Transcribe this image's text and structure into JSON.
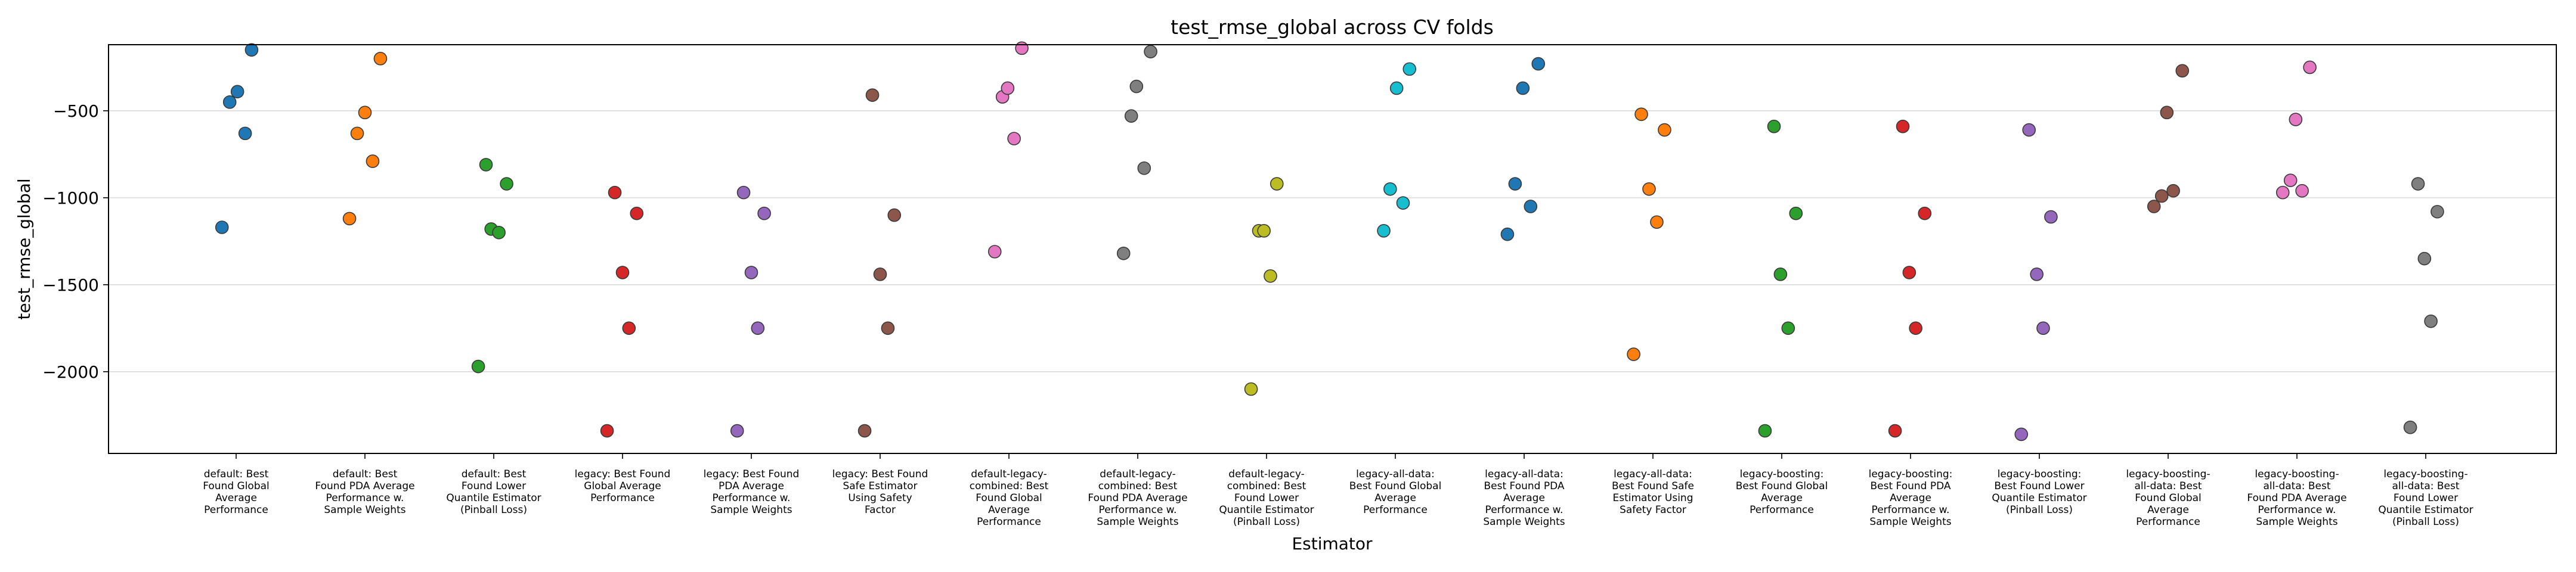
{
  "chart_data": {
    "type": "scatter",
    "title": "test_rmse_global across CV folds",
    "xlabel": "Estimator",
    "ylabel": "test_rmse_global",
    "ylim": [
      -2470,
      -120
    ],
    "yticks": [
      -2000,
      -1500,
      -1000,
      -500
    ],
    "ytick_labels": [
      "−2000",
      "−1500",
      "−1000",
      "−500"
    ],
    "grid": "horizontal",
    "categories": [
      {
        "lines": [
          "default: Best",
          "Found Global",
          "Average",
          "Performance"
        ]
      },
      {
        "lines": [
          "default: Best",
          "Found PDA Average",
          "Performance w.",
          "Sample Weights"
        ]
      },
      {
        "lines": [
          "default: Best",
          "Found Lower",
          "Quantile Estimator",
          "(Pinball Loss)"
        ]
      },
      {
        "lines": [
          "legacy: Best Found",
          "Global Average",
          "Performance"
        ]
      },
      {
        "lines": [
          "legacy: Best Found",
          "PDA Average",
          "Performance w.",
          "Sample Weights"
        ]
      },
      {
        "lines": [
          "legacy: Best Found",
          "Safe Estimator",
          "Using Safety",
          "Factor"
        ]
      },
      {
        "lines": [
          "default-legacy-",
          "combined: Best",
          "Found Global",
          "Average",
          "Performance"
        ]
      },
      {
        "lines": [
          "default-legacy-",
          "combined: Best",
          "Found PDA Average",
          "Performance w.",
          "Sample Weights"
        ]
      },
      {
        "lines": [
          "default-legacy-",
          "combined: Best",
          "Found Lower",
          "Quantile Estimator",
          "(Pinball Loss)"
        ]
      },
      {
        "lines": [
          "legacy-all-data:",
          "Best Found Global",
          "Average",
          "Performance"
        ]
      },
      {
        "lines": [
          "legacy-all-data:",
          "Best Found PDA",
          "Average",
          "Performance w.",
          "Sample Weights"
        ]
      },
      {
        "lines": [
          "legacy-all-data:",
          "Best Found Safe",
          "Estimator Using",
          "Safety Factor"
        ]
      },
      {
        "lines": [
          "legacy-boosting:",
          "Best Found Global",
          "Average",
          "Performance"
        ]
      },
      {
        "lines": [
          "legacy-boosting:",
          "Best Found PDA",
          "Average",
          "Performance w.",
          "Sample Weights"
        ]
      },
      {
        "lines": [
          "legacy-boosting:",
          "Best Found Lower",
          "Quantile Estimator",
          "(Pinball Loss)"
        ]
      },
      {
        "lines": [
          "legacy-boosting-",
          "all-data: Best",
          "Found Global",
          "Average",
          "Performance"
        ]
      },
      {
        "lines": [
          "legacy-boosting-",
          "all-data: Best",
          "Found PDA Average",
          "Performance w.",
          "Sample Weights"
        ]
      },
      {
        "lines": [
          "legacy-boosting-",
          "all-data: Best",
          "Found Lower",
          "Quantile Estimator",
          "(Pinball Loss)"
        ]
      }
    ],
    "series": [
      {
        "color": "#1f77b4",
        "points": [
          {
            "dx": -0.11,
            "y": -1170
          },
          {
            "dx": -0.05,
            "y": -450
          },
          {
            "dx": 0.01,
            "y": -390
          },
          {
            "dx": 0.07,
            "y": -630
          },
          {
            "dx": 0.12,
            "y": -150
          }
        ]
      },
      {
        "color": "#ff7f0e",
        "points": [
          {
            "dx": -0.12,
            "y": -1120
          },
          {
            "dx": -0.06,
            "y": -630
          },
          {
            "dx": 0.0,
            "y": -510
          },
          {
            "dx": 0.06,
            "y": -790
          },
          {
            "dx": 0.12,
            "y": -200
          }
        ]
      },
      {
        "color": "#2ca02c",
        "points": [
          {
            "dx": -0.12,
            "y": -1970
          },
          {
            "dx": -0.06,
            "y": -810
          },
          {
            "dx": -0.02,
            "y": -1180
          },
          {
            "dx": 0.04,
            "y": -1200
          },
          {
            "dx": 0.1,
            "y": -920
          }
        ]
      },
      {
        "color": "#d62728",
        "points": [
          {
            "dx": -0.12,
            "y": -2340
          },
          {
            "dx": -0.06,
            "y": -970
          },
          {
            "dx": 0.0,
            "y": -1430
          },
          {
            "dx": 0.05,
            "y": -1750
          },
          {
            "dx": 0.11,
            "y": -1090
          }
        ]
      },
      {
        "color": "#9467bd",
        "points": [
          {
            "dx": -0.11,
            "y": -2340
          },
          {
            "dx": -0.06,
            "y": -970
          },
          {
            "dx": 0.0,
            "y": -1430
          },
          {
            "dx": 0.05,
            "y": -1750
          },
          {
            "dx": 0.1,
            "y": -1090
          }
        ]
      },
      {
        "color": "#8c564b",
        "points": [
          {
            "dx": -0.12,
            "y": -2340
          },
          {
            "dx": -0.06,
            "y": -410
          },
          {
            "dx": 0.0,
            "y": -1440
          },
          {
            "dx": 0.06,
            "y": -1750
          },
          {
            "dx": 0.11,
            "y": -1100
          }
        ]
      },
      {
        "color": "#e377c2",
        "points": [
          {
            "dx": -0.11,
            "y": -1310
          },
          {
            "dx": -0.05,
            "y": -420
          },
          {
            "dx": -0.01,
            "y": -370
          },
          {
            "dx": 0.04,
            "y": -660
          },
          {
            "dx": 0.1,
            "y": -140
          }
        ]
      },
      {
        "color": "#7f7f7f",
        "points": [
          {
            "dx": -0.11,
            "y": -1320
          },
          {
            "dx": -0.05,
            "y": -530
          },
          {
            "dx": -0.01,
            "y": -360
          },
          {
            "dx": 0.05,
            "y": -830
          },
          {
            "dx": 0.1,
            "y": -160
          }
        ]
      },
      {
        "color": "#bcbd22",
        "points": [
          {
            "dx": -0.12,
            "y": -2100
          },
          {
            "dx": -0.06,
            "y": -1190
          },
          {
            "dx": -0.02,
            "y": -1190
          },
          {
            "dx": 0.03,
            "y": -1450
          },
          {
            "dx": 0.08,
            "y": -920
          }
        ]
      },
      {
        "color": "#17becf",
        "points": [
          {
            "dx": -0.09,
            "y": -1190
          },
          {
            "dx": -0.04,
            "y": -950
          },
          {
            "dx": 0.01,
            "y": -370
          },
          {
            "dx": 0.06,
            "y": -1030
          },
          {
            "dx": 0.11,
            "y": -260
          }
        ]
      },
      {
        "color": "#1f77b4",
        "points": [
          {
            "dx": -0.13,
            "y": -1210
          },
          {
            "dx": -0.07,
            "y": -920
          },
          {
            "dx": -0.01,
            "y": -370
          },
          {
            "dx": 0.05,
            "y": -1050
          },
          {
            "dx": 0.11,
            "y": -230
          }
        ]
      },
      {
        "color": "#ff7f0e",
        "points": [
          {
            "dx": -0.15,
            "y": -1900
          },
          {
            "dx": -0.09,
            "y": -520
          },
          {
            "dx": -0.03,
            "y": -950
          },
          {
            "dx": 0.03,
            "y": -1140
          },
          {
            "dx": 0.09,
            "y": -610
          }
        ]
      },
      {
        "color": "#2ca02c",
        "points": [
          {
            "dx": -0.13,
            "y": -2340
          },
          {
            "dx": -0.06,
            "y": -590
          },
          {
            "dx": -0.01,
            "y": -1440
          },
          {
            "dx": 0.05,
            "y": -1750
          },
          {
            "dx": 0.11,
            "y": -1090
          }
        ]
      },
      {
        "color": "#d62728",
        "points": [
          {
            "dx": -0.12,
            "y": -2340
          },
          {
            "dx": -0.06,
            "y": -590
          },
          {
            "dx": -0.01,
            "y": -1430
          },
          {
            "dx": 0.04,
            "y": -1750
          },
          {
            "dx": 0.11,
            "y": -1090
          }
        ]
      },
      {
        "color": "#9467bd",
        "points": [
          {
            "dx": -0.14,
            "y": -2360
          },
          {
            "dx": -0.08,
            "y": -610
          },
          {
            "dx": -0.02,
            "y": -1440
          },
          {
            "dx": 0.03,
            "y": -1750
          },
          {
            "dx": 0.09,
            "y": -1110
          }
        ]
      },
      {
        "color": "#8c564b",
        "points": [
          {
            "dx": -0.11,
            "y": -1050
          },
          {
            "dx": -0.05,
            "y": -990
          },
          {
            "dx": -0.01,
            "y": -510
          },
          {
            "dx": 0.04,
            "y": -960
          },
          {
            "dx": 0.11,
            "y": -270
          }
        ]
      },
      {
        "color": "#e377c2",
        "points": [
          {
            "dx": -0.11,
            "y": -970
          },
          {
            "dx": -0.05,
            "y": -900
          },
          {
            "dx": -0.01,
            "y": -550
          },
          {
            "dx": 0.04,
            "y": -960
          },
          {
            "dx": 0.1,
            "y": -250
          }
        ]
      },
      {
        "color": "#7f7f7f",
        "points": [
          {
            "dx": -0.12,
            "y": -2320
          },
          {
            "dx": -0.06,
            "y": -920
          },
          {
            "dx": -0.01,
            "y": -1350
          },
          {
            "dx": 0.04,
            "y": -1710
          },
          {
            "dx": 0.09,
            "y": -1080
          }
        ]
      }
    ]
  }
}
